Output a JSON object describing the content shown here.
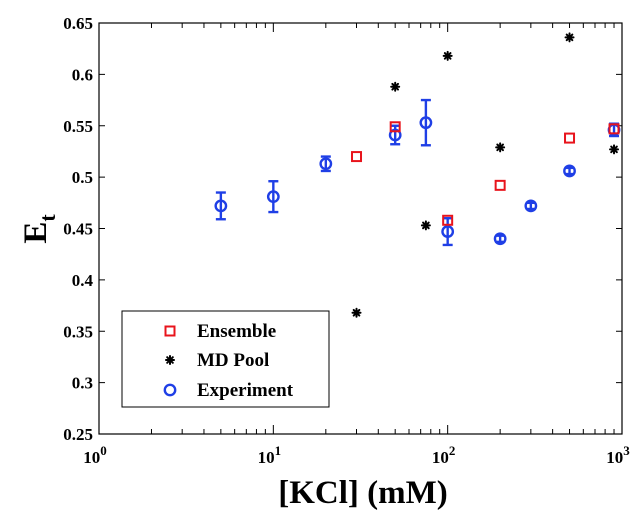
{
  "chart_data": {
    "type": "scatter",
    "title": "",
    "xlabel": "[KCl] (mM)",
    "ylabel_main": "E",
    "ylabel_sub": "t",
    "xscale": "log",
    "xlim": [
      1,
      1000
    ],
    "ylim": [
      0.25,
      0.65
    ],
    "grid": false,
    "legend_position": "bottom-left",
    "x_ticks": [
      {
        "value": 1,
        "base": "10",
        "exp": "0"
      },
      {
        "value": 10,
        "base": "10",
        "exp": "1"
      },
      {
        "value": 100,
        "base": "10",
        "exp": "2"
      },
      {
        "value": 1000,
        "base": "10",
        "exp": "3"
      }
    ],
    "y_ticks": [
      "0.25",
      "0.3",
      "0.35",
      "0.4",
      "0.45",
      "0.5",
      "0.55",
      "0.6",
      "0.65"
    ],
    "series": [
      {
        "name": "Ensemble",
        "marker": "square",
        "color": "#e8141c",
        "points": [
          {
            "x": 30,
            "y": 0.52
          },
          {
            "x": 50,
            "y": 0.549
          },
          {
            "x": 100,
            "y": 0.458
          },
          {
            "x": 200,
            "y": 0.492
          },
          {
            "x": 500,
            "y": 0.538
          },
          {
            "x": 900,
            "y": 0.547
          }
        ]
      },
      {
        "name": "MD Pool",
        "marker": "asterisk",
        "color": "#000000",
        "points": [
          {
            "x": 30,
            "y": 0.368
          },
          {
            "x": 50,
            "y": 0.588
          },
          {
            "x": 75,
            "y": 0.453
          },
          {
            "x": 100,
            "y": 0.618
          },
          {
            "x": 200,
            "y": 0.529
          },
          {
            "x": 500,
            "y": 0.636
          },
          {
            "x": 900,
            "y": 0.527
          }
        ]
      },
      {
        "name": "Experiment",
        "marker": "circle",
        "color": "#1f3fe6",
        "points": [
          {
            "x": 5,
            "y": 0.472,
            "err": 0.013
          },
          {
            "x": 10,
            "y": 0.481,
            "err": 0.015
          },
          {
            "x": 20,
            "y": 0.513,
            "err": 0.007
          },
          {
            "x": 50,
            "y": 0.541,
            "err": 0.009
          },
          {
            "x": 75,
            "y": 0.553,
            "err": 0.022
          },
          {
            "x": 100,
            "y": 0.447,
            "err": 0.013
          },
          {
            "x": 200,
            "y": 0.44,
            "err": 0.003
          },
          {
            "x": 300,
            "y": 0.472,
            "err": 0.003
          },
          {
            "x": 500,
            "y": 0.506,
            "err": 0.003
          },
          {
            "x": 900,
            "y": 0.546,
            "err": 0.006
          }
        ]
      }
    ]
  }
}
